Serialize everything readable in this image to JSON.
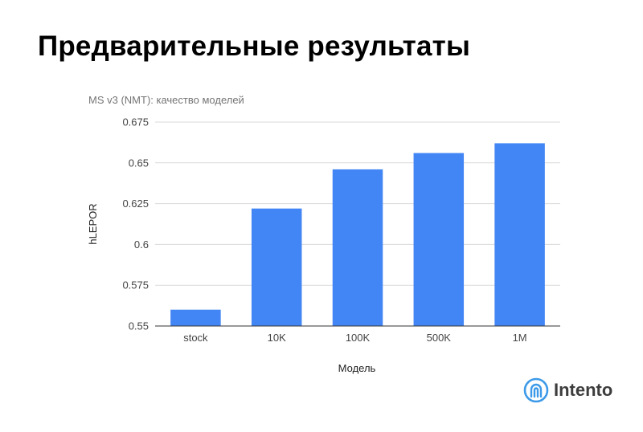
{
  "slide": {
    "title": "Предварительные результаты"
  },
  "chart_data": {
    "type": "bar",
    "title": "MS v3 (NMT): качество моделей",
    "xlabel": "Модель",
    "ylabel": "hLEPOR",
    "categories": [
      "stock",
      "10K",
      "100K",
      "500K",
      "1M"
    ],
    "values": [
      0.56,
      0.622,
      0.646,
      0.656,
      0.662
    ],
    "ylim": [
      0.55,
      0.675
    ],
    "yticks": [
      "0.55",
      "0.575",
      "0.6",
      "0.625",
      "0.65",
      "0.675"
    ],
    "bar_color": "#4285f4",
    "grid": true,
    "legend": "none"
  },
  "logo": {
    "text": "Intento",
    "icon": "intento-logo-icon",
    "color": "#3d9ae8"
  }
}
